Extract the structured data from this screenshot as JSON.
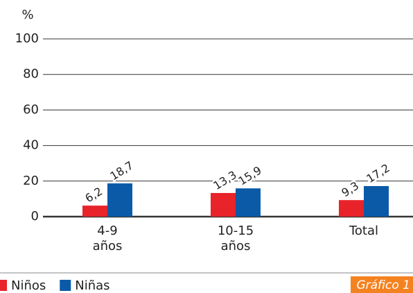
{
  "chart_data": {
    "type": "bar",
    "y_label": "%",
    "categories": [
      "4-9\naños",
      "10-15\naños",
      "Total"
    ],
    "series": [
      {
        "name": "Niños",
        "color": "#e8232a",
        "values": [
          6.2,
          13.3,
          9.3
        ],
        "value_labels": [
          "6,2",
          "13,3",
          "9,3"
        ]
      },
      {
        "name": "Niñas",
        "color": "#0a5aa8",
        "values": [
          18.7,
          15.9,
          17.2
        ],
        "value_labels": [
          "18,7",
          "15,9",
          "17,2"
        ]
      }
    ],
    "ylim": [
      0,
      100
    ],
    "yticks": [
      0,
      20,
      40,
      60,
      80,
      100
    ],
    "grid": true,
    "legend": "bottom",
    "caption": "Gráfico 1"
  }
}
